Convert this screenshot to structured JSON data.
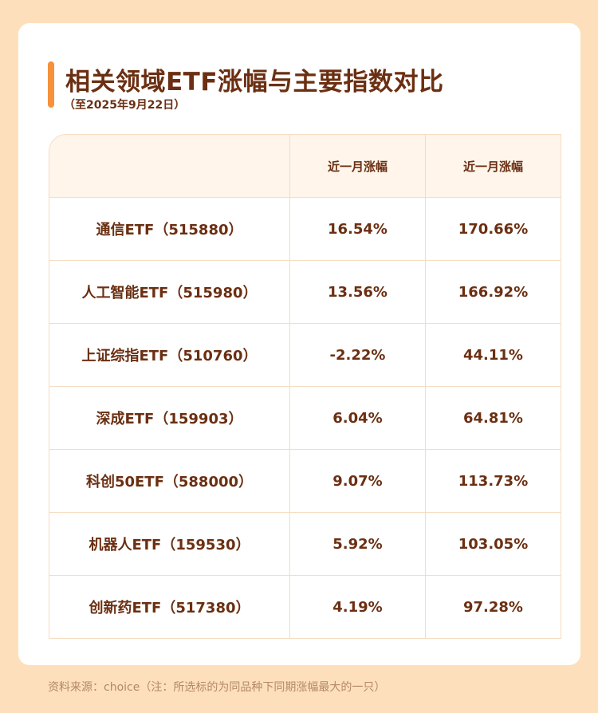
{
  "title": "相关领域ETF涨幅与主要指数对比",
  "subtitle": "（至2025年9月22日）",
  "table": {
    "headers": [
      "",
      "近一月涨幅",
      "近一月涨幅"
    ],
    "rows": [
      {
        "name": "通信ETF（515880）",
        "col1": "16.54%",
        "col2": "170.66%"
      },
      {
        "name": "人工智能ETF（515980）",
        "col1": "13.56%",
        "col2": "166.92%"
      },
      {
        "name": "上证综指ETF（510760）",
        "col1": "-2.22%",
        "col2": "44.11%"
      },
      {
        "name": "深成ETF（159903）",
        "col1": "6.04%",
        "col2": "64.81%"
      },
      {
        "name": "科创50ETF（588000）",
        "col1": "9.07%",
        "col2": "113.73%"
      },
      {
        "name": "机器人ETF（159530）",
        "col1": "5.92%",
        "col2": "103.05%"
      },
      {
        "name": "创新药ETF（517380）",
        "col1": "4.19%",
        "col2": "97.28%"
      }
    ]
  },
  "footnote": "资料来源：choice（注：所选标的为同品种下同期涨幅最大的一只）",
  "colors": {
    "background": "#fde0bb",
    "accent": "#f7913a",
    "text": "#6b2f12",
    "header_fill": "#fff5ea",
    "grid": "#f6dcc3",
    "footnote": "#b38769"
  }
}
